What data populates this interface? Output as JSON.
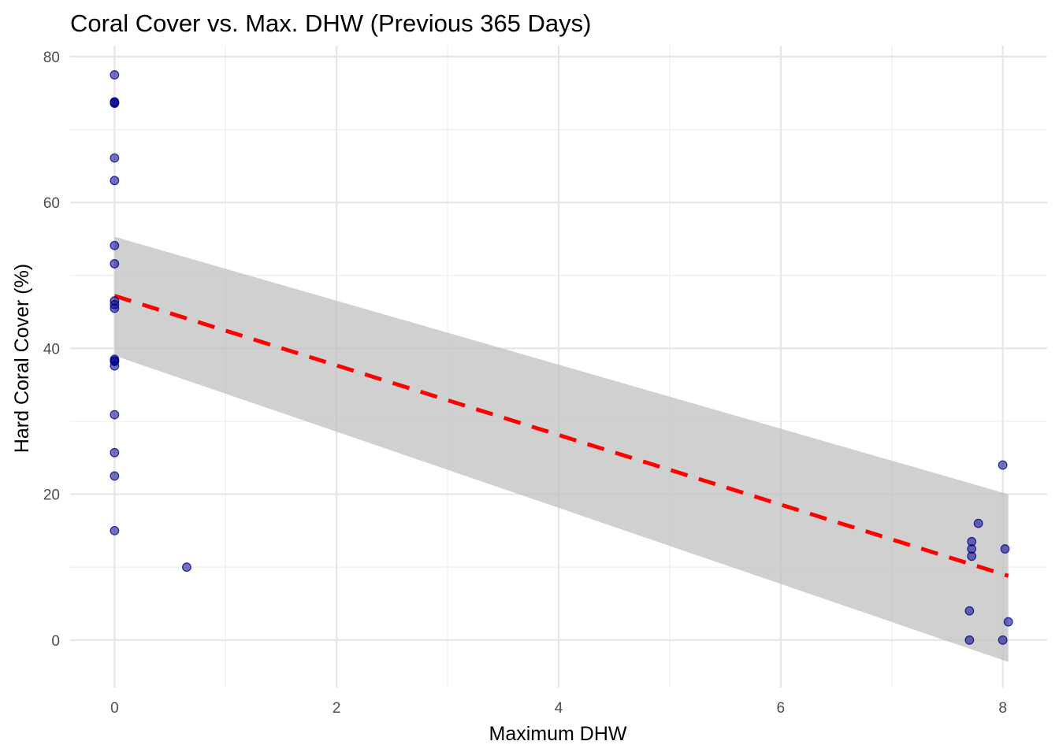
{
  "chart_data": {
    "type": "scatter",
    "title": "Coral Cover vs. Max. DHW (Previous 365 Days)",
    "xlabel": "Maximum DHW",
    "ylabel": "Hard Coral Cover (%)",
    "xlim": [
      -0.4,
      8.4
    ],
    "ylim": [
      -6.5,
      81.5
    ],
    "x_ticks": [
      0,
      2,
      4,
      6,
      8
    ],
    "y_ticks": [
      0,
      20,
      40,
      60,
      80
    ],
    "x_minor_ticks": [
      1,
      3,
      5,
      7
    ],
    "y_minor_ticks": [
      10,
      30,
      50,
      70
    ],
    "grid": true,
    "legend": "none",
    "colors": {
      "points": "#00008b",
      "trend_line": "#ff0000",
      "confidence_band": "#bebebe"
    },
    "series": [
      {
        "x": [
          0,
          0,
          0,
          0,
          0,
          0,
          0,
          0,
          0,
          0,
          0,
          0,
          0,
          0,
          0,
          0,
          0,
          0,
          0,
          0.65,
          7.7,
          7.7,
          7.72,
          7.72,
          7.72,
          7.78,
          8.0,
          8.0,
          8.02,
          8.05
        ],
        "y": [
          77.5,
          73.8,
          73.6,
          66.1,
          63.0,
          54.1,
          51.6,
          46.5,
          46.0,
          45.5,
          38.5,
          38.2,
          37.6,
          30.9,
          25.7,
          22.5,
          15.0,
          38.3,
          73.7,
          10.0,
          4.0,
          0.0,
          13.5,
          12.5,
          11.5,
          16.0,
          24.0,
          0.0,
          12.5,
          2.5
        ]
      }
    ],
    "trend": {
      "style": "dashed",
      "x": [
        0,
        8.05
      ],
      "y": [
        47.2,
        8.8
      ],
      "ci_lower": [
        39.0,
        -3.0
      ],
      "ci_upper": [
        55.3,
        20.0
      ]
    }
  }
}
